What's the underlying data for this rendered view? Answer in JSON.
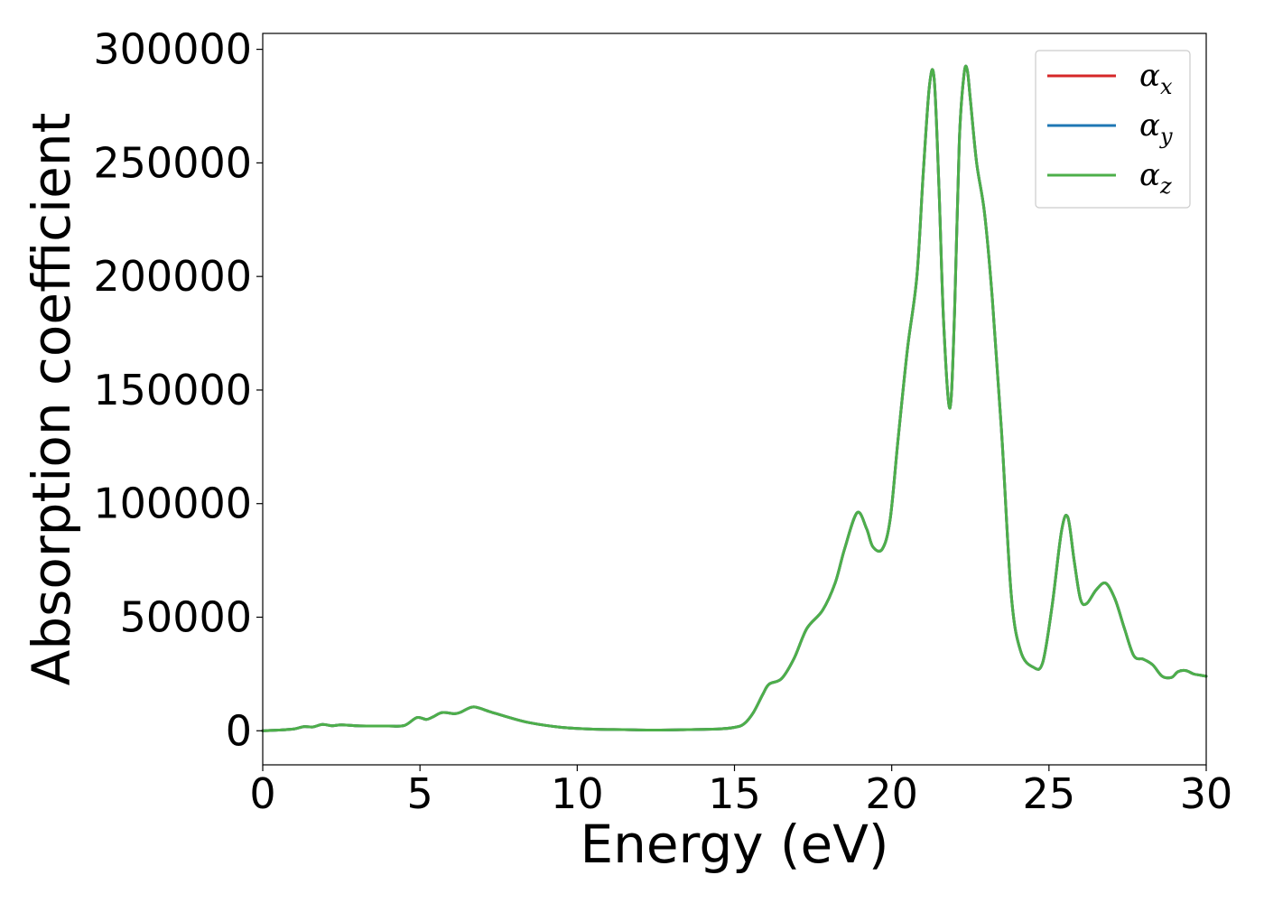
{
  "chart_data": {
    "type": "line",
    "xlabel": "Energy (eV)",
    "ylabel": "Absorption coefficient",
    "xlim": [
      0,
      30
    ],
    "ylim": [
      -15000,
      307000
    ],
    "xticks": [
      0,
      5,
      10,
      15,
      20,
      25,
      30
    ],
    "xtick_labels": [
      "0",
      "5",
      "10",
      "15",
      "20",
      "25",
      "30"
    ],
    "yticks": [
      0,
      50000,
      100000,
      150000,
      200000,
      250000,
      300000
    ],
    "ytick_labels": [
      "0",
      "50000",
      "100000",
      "150000",
      "200000",
      "250000",
      "300000"
    ],
    "grid": false,
    "legend_position": "top-right",
    "x": [
      0,
      0.5,
      1.0,
      1.3,
      1.6,
      1.9,
      2.2,
      2.5,
      3.0,
      3.5,
      4.0,
      4.5,
      4.9,
      5.2,
      5.4,
      5.7,
      6.1,
      6.3,
      6.7,
      7.2,
      7.8,
      8.5,
      9.5,
      10.5,
      11.5,
      12.5,
      13.5,
      14.5,
      15.0,
      15.3,
      15.6,
      15.9,
      16.1,
      16.5,
      16.9,
      17.3,
      17.8,
      18.2,
      18.5,
      18.9,
      19.2,
      19.4,
      19.7,
      19.95,
      20.2,
      20.5,
      20.8,
      21.0,
      21.2,
      21.35,
      21.5,
      21.65,
      21.85,
      22.0,
      22.15,
      22.3,
      22.4,
      22.5,
      22.7,
      22.95,
      23.2,
      23.5,
      23.8,
      24.1,
      24.5,
      24.8,
      25.1,
      25.4,
      25.6,
      25.8,
      26.0,
      26.2,
      26.5,
      26.8,
      27.1,
      27.4,
      27.7,
      28.0,
      28.3,
      28.6,
      28.9,
      29.1,
      29.35,
      29.6,
      29.8,
      30.0
    ],
    "series": [
      {
        "name": "αx",
        "label_main": "α",
        "label_sub": "x",
        "color": "#d62728",
        "values": [
          0,
          300,
          800,
          1800,
          1700,
          2800,
          2200,
          2600,
          2200,
          2100,
          2100,
          2300,
          5800,
          5000,
          6000,
          8000,
          7500,
          8200,
          10500,
          8500,
          6000,
          3500,
          1500,
          700,
          500,
          300,
          500,
          800,
          1500,
          3000,
          8000,
          16000,
          20500,
          23000,
          32000,
          45000,
          53000,
          65000,
          80000,
          96000,
          89000,
          81000,
          80000,
          93000,
          128000,
          168000,
          200000,
          245000,
          284000,
          287000,
          240000,
          180000,
          142000,
          185000,
          260000,
          289000,
          291000,
          278000,
          250000,
          228000,
          190000,
          130000,
          60000,
          35000,
          28000,
          30000,
          55000,
          88000,
          94000,
          75000,
          58000,
          56000,
          62000,
          65000,
          58000,
          45000,
          33000,
          31500,
          29000,
          24000,
          23500,
          26000,
          26500,
          25000,
          24500,
          24000
        ]
      },
      {
        "name": "αy",
        "label_main": "α",
        "label_sub": "y",
        "color": "#1f77b4",
        "values": [
          0,
          300,
          800,
          1800,
          1700,
          2800,
          2200,
          2600,
          2200,
          2100,
          2100,
          2300,
          5800,
          5000,
          6000,
          8000,
          7500,
          8200,
          10500,
          8500,
          6000,
          3500,
          1500,
          700,
          500,
          300,
          500,
          800,
          1500,
          3000,
          8000,
          16000,
          20500,
          23000,
          32000,
          45000,
          53000,
          65000,
          80000,
          96000,
          89000,
          81000,
          80000,
          93000,
          128000,
          168000,
          200000,
          245000,
          284000,
          287000,
          240000,
          180000,
          142000,
          185000,
          260000,
          289000,
          291000,
          278000,
          250000,
          228000,
          190000,
          130000,
          60000,
          35000,
          28000,
          30000,
          55000,
          88000,
          94000,
          75000,
          58000,
          56000,
          62000,
          65000,
          58000,
          45000,
          33000,
          31500,
          29000,
          24000,
          23500,
          26000,
          26500,
          25000,
          24500,
          24000
        ]
      },
      {
        "name": "αz",
        "label_main": "α",
        "label_sub": "z",
        "color": "#4daf4a",
        "values": [
          0,
          300,
          800,
          1800,
          1700,
          2800,
          2200,
          2600,
          2200,
          2100,
          2100,
          2300,
          5800,
          5000,
          6000,
          8000,
          7500,
          8200,
          10500,
          8500,
          6000,
          3500,
          1500,
          700,
          500,
          300,
          500,
          800,
          1500,
          3000,
          8000,
          16000,
          20500,
          23000,
          32000,
          45000,
          53000,
          65000,
          80000,
          96000,
          89000,
          81000,
          80000,
          93000,
          128000,
          168000,
          200000,
          245000,
          284000,
          287000,
          240000,
          180000,
          142000,
          185000,
          260000,
          289000,
          291000,
          278000,
          250000,
          228000,
          190000,
          130000,
          60000,
          35000,
          28000,
          30000,
          55000,
          88000,
          94000,
          75000,
          58000,
          56000,
          62000,
          65000,
          58000,
          45000,
          33000,
          31500,
          29000,
          24000,
          23500,
          26000,
          26500,
          25000,
          24500,
          24000
        ]
      }
    ]
  }
}
